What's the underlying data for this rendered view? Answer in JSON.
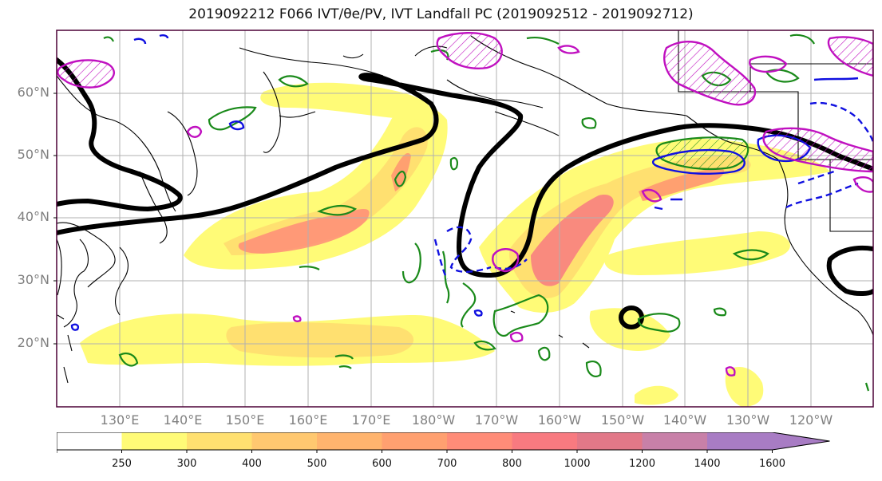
{
  "title": "2019092212 F066 IVT/θe/PV, IVT Landfall PC (2019092512 - 2019092712)",
  "map": {
    "lat_labels": [
      "60°N",
      "50°N",
      "40°N",
      "30°N",
      "20°N"
    ],
    "lon_labels": [
      "130°E",
      "140°E",
      "150°E",
      "160°E",
      "170°E",
      "180°W",
      "170°W",
      "160°W",
      "150°W",
      "140°W",
      "130°W",
      "120°W"
    ],
    "border_color": "#4b0036",
    "gridline_color": "#b0b0b0"
  },
  "colorbar": {
    "labels": [
      "250",
      "300",
      "400",
      "500",
      "600",
      "700",
      "800",
      "1000",
      "1200",
      "1400",
      "1600"
    ],
    "colors": [
      "#ffffff",
      "#fffb77",
      "#ffe070",
      "#ffc870",
      "#ffb46e",
      "#ffa070",
      "#ff8c78",
      "#f87a80",
      "#e27888",
      "#c880a8",
      "#a87cc4"
    ],
    "extend": "max"
  },
  "contour_colors": {
    "thick_line": "#000000",
    "green": "#1a8a1a",
    "blue": "#1010e0",
    "magenta": "#c010c0"
  }
}
